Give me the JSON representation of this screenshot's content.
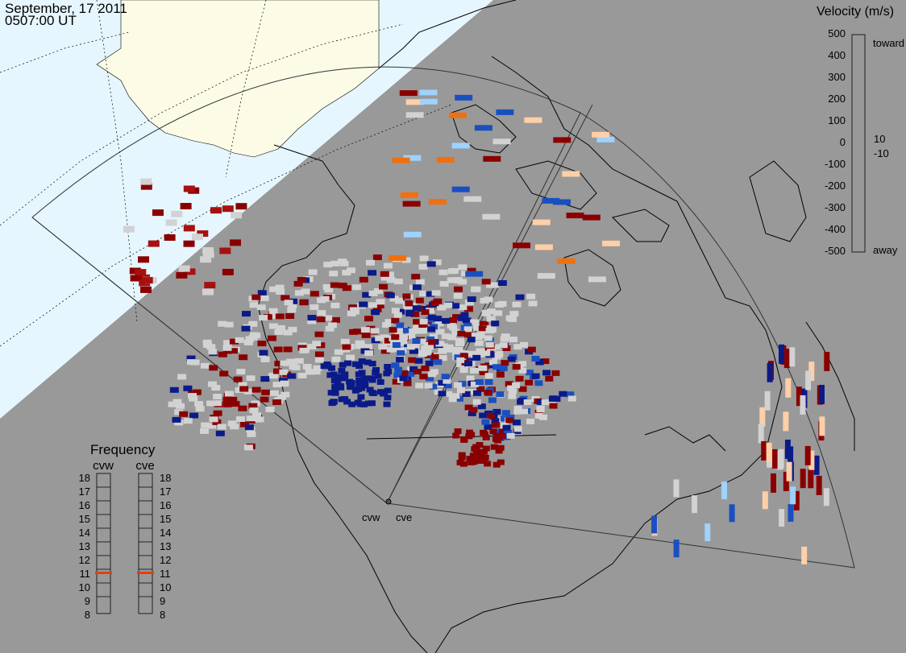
{
  "header": {
    "date": "September, 17 2011",
    "time": "0507:00 UT"
  },
  "velocity_scale": {
    "title": "Velocity (m/s)",
    "ticks": [
      "500",
      "400",
      "300",
      "200",
      "100",
      "10",
      "0",
      "-10",
      "-100",
      "-200",
      "-300",
      "-400",
      "-500"
    ],
    "toward_label": "toward",
    "away_label": "away",
    "colors": [
      "#cfe8ff",
      "#9ed2ff",
      "#5fb0ff",
      "#2a82e6",
      "#1a4fc0",
      "#0b2a90",
      "#001a70",
      "#ffffff",
      "#7a0000",
      "#9b1010",
      "#c02020",
      "#dd4a10",
      "#f07010",
      "#ffa040",
      "#ffd2a8"
    ]
  },
  "frequency_panel": {
    "title": "Frequency",
    "radars": [
      {
        "name": "cvw",
        "frequency_mhz": 11
      },
      {
        "name": "cve",
        "frequency_mhz": 11
      }
    ],
    "ticks": [
      "18",
      "17",
      "16",
      "15",
      "14",
      "13",
      "12",
      "11",
      "10",
      "9",
      "8"
    ],
    "marker_color": "#e04010"
  },
  "map": {
    "radar_labels": [
      "cvw",
      "cve"
    ],
    "colors": {
      "night": "#999999",
      "sunlit_ocean": "#e6f6ff",
      "sunlit_land": "#fbfbe6",
      "gs_scatter": "#d2d2d2",
      "coast": "#000000"
    }
  }
}
